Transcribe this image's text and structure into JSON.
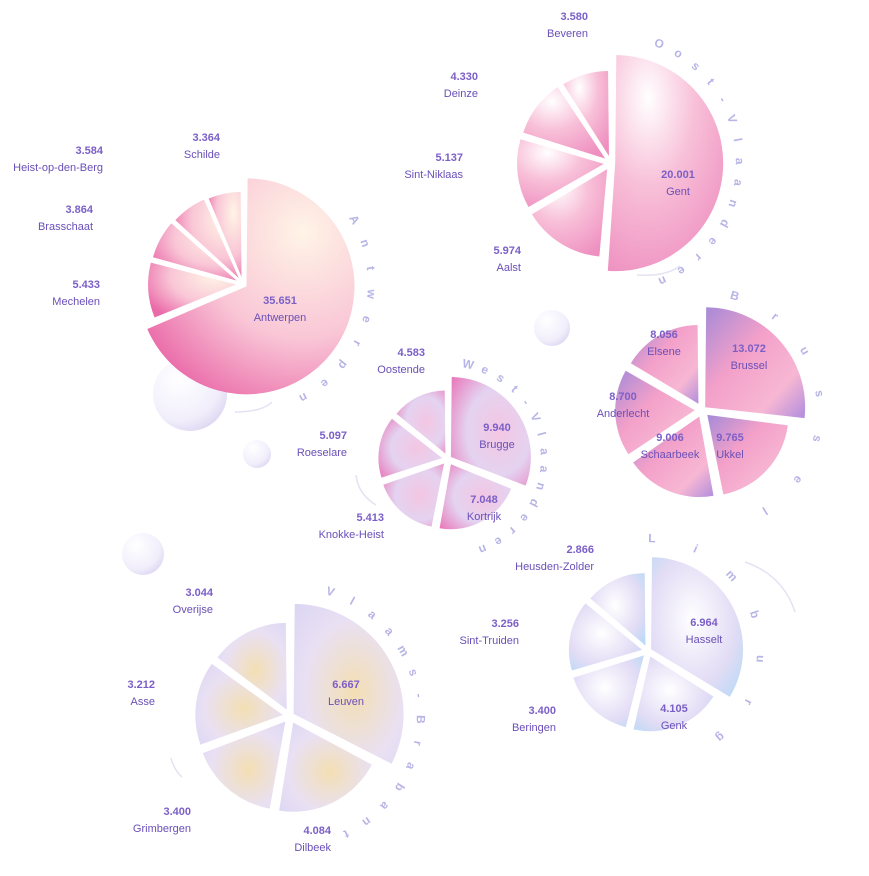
{
  "chart_data": [
    {
      "type": "pie",
      "title": "Antwerpen",
      "categories": [
        "Antwerpen",
        "Mechelen",
        "Brasschaat",
        "Heist-op-den-Berg",
        "Schilde"
      ],
      "values": [
        35651,
        5433,
        3864,
        3584,
        3364
      ],
      "value_labels": [
        "35.651",
        "5.433",
        "3.864",
        "3.584",
        "3.364"
      ],
      "title_chars": [
        "A",
        "n",
        "t",
        "w",
        "e",
        "r",
        "p",
        "e",
        "n"
      ]
    },
    {
      "type": "pie",
      "title": "Oost-Vlaanderen",
      "categories": [
        "Gent",
        "Aalst",
        "Sint-Niklaas",
        "Deinze",
        "Beveren"
      ],
      "values": [
        20001,
        5974,
        5137,
        4330,
        3580
      ],
      "value_labels": [
        "20.001",
        "5.974",
        "5.137",
        "4.330",
        "3.580"
      ],
      "title_chars": [
        "O",
        "o",
        "s",
        "t",
        "-",
        "V",
        "l",
        "a",
        "a",
        "n",
        "d",
        "e",
        "r",
        "e",
        "n"
      ]
    },
    {
      "type": "pie",
      "title": "Brussel",
      "categories": [
        "Brussel",
        "Ukkel",
        "Schaarbeek",
        "Anderlecht",
        "Elsene"
      ],
      "values": [
        13072,
        9765,
        9006,
        8700,
        8056
      ],
      "value_labels": [
        "13.072",
        "9.765",
        "9.006",
        "8.700",
        "8.056"
      ],
      "title_chars": [
        "B",
        "r",
        "u",
        "s",
        "s",
        "e",
        "l"
      ]
    },
    {
      "type": "pie",
      "title": "West-Vlaanderen",
      "categories": [
        "Brugge",
        "Kortrijk",
        "Knokke-Heist",
        "Roeselare",
        "Oostende"
      ],
      "values": [
        9940,
        7048,
        5413,
        5097,
        4583
      ],
      "value_labels": [
        "9.940",
        "7.048",
        "5.413",
        "5.097",
        "4.583"
      ],
      "title_chars": [
        "W",
        "e",
        "s",
        "t",
        "-",
        "V",
        "l",
        "a",
        "a",
        "n",
        "d",
        "e",
        "r",
        "e",
        "n"
      ]
    },
    {
      "type": "pie",
      "title": "Vlaams-Brabant",
      "categories": [
        "Leuven",
        "Dilbeek",
        "Grimbergen",
        "Asse",
        "Overijse"
      ],
      "values": [
        6667,
        4084,
        3400,
        3212,
        3044
      ],
      "value_labels": [
        "6.667",
        "4.084",
        "3.400",
        "3.212",
        "3.044"
      ],
      "title_chars": [
        "V",
        "l",
        "a",
        "a",
        "m",
        "s",
        "-",
        "B",
        "r",
        "a",
        "b",
        "a",
        "n",
        "t"
      ]
    },
    {
      "type": "pie",
      "title": "Limburg",
      "categories": [
        "Hasselt",
        "Genk",
        "Beringen",
        "Sint-Truiden",
        "Heusden-Zolder"
      ],
      "values": [
        6964,
        4105,
        3400,
        3256,
        2866
      ],
      "value_labels": [
        "6.964",
        "4.105",
        "3.400",
        "3.256",
        "2.866"
      ],
      "title_chars": [
        "L",
        "i",
        "m",
        "b",
        "u",
        "r",
        "g"
      ]
    }
  ],
  "colors": {
    "text_value": "#7b5fc7",
    "text_label": "#6a4fb8",
    "title_letters": "#b7b4e6",
    "pink": "#ee8fc0",
    "peach": "#fde6d6",
    "purple": "#a58ad8",
    "lavender": "#dcd6f3",
    "gold": "#f3dfb3",
    "blue": "#a8d8f6"
  }
}
